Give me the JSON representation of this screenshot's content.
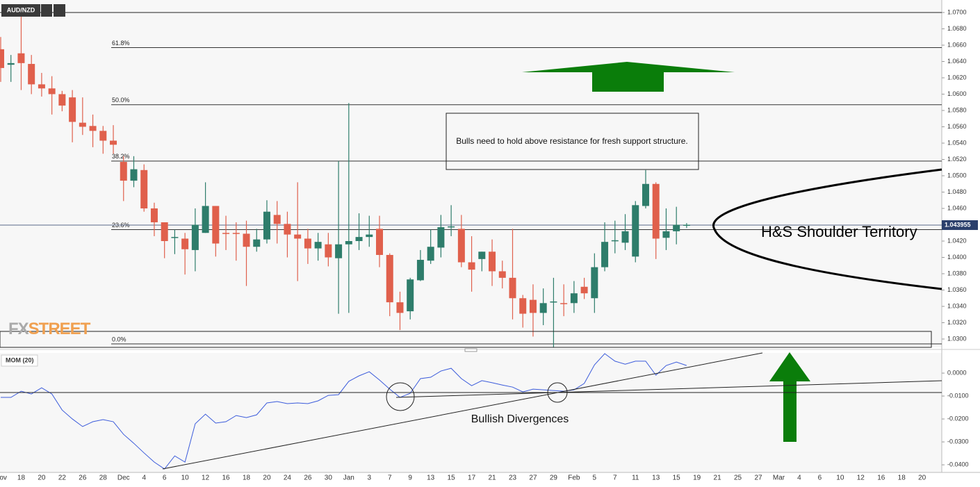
{
  "chart_data": [
    {
      "type": "candlestick",
      "series": [
        {
          "name": "AUD/NZD",
          "up_color": "#2e7d6b",
          "down_color": "#e0604c",
          "open": [
            1.0655,
            1.0636,
            1.065,
            1.0637,
            1.0612,
            1.0607,
            1.06,
            1.0596,
            1.0565,
            1.0561,
            1.0555,
            1.0543,
            1.0517,
            1.0494,
            1.0507,
            1.046,
            1.0443,
            1.0424,
            1.0423,
            1.0409,
            1.043,
            1.0463,
            1.043,
            1.043,
            1.0429,
            1.0413,
            1.0422,
            1.0452,
            1.0441,
            1.0428,
            1.0423,
            1.0411,
            1.0416,
            1.0399,
            1.0416,
            1.042,
            1.0425,
            1.0435,
            1.0403,
            1.0345,
            1.0334,
            1.0372,
            1.0396,
            1.0412,
            1.0437,
            1.0435,
            1.0394,
            1.0398,
            1.0407,
            1.0383,
            1.0375,
            1.035,
            1.0348,
            1.0332,
            1.0345,
            1.0344,
            1.0344,
            1.0364,
            1.035,
            1.0388,
            1.042,
            1.0418,
            1.0401,
            1.0463,
            1.049,
            1.0424,
            1.0432,
            1.0439
          ],
          "high": [
            1.067,
            1.0648,
            1.0707,
            1.0648,
            1.0626,
            1.0622,
            1.0604,
            1.0605,
            1.0596,
            1.0575,
            1.0561,
            1.0562,
            1.0524,
            1.0524,
            1.0514,
            1.0467,
            1.0443,
            1.0434,
            1.043,
            1.046,
            1.0492,
            1.0463,
            1.0451,
            1.0443,
            1.0445,
            1.0435,
            1.047,
            1.0469,
            1.0456,
            1.0492,
            1.0435,
            1.043,
            1.043,
            1.0518,
            1.0589,
            1.0454,
            1.0451,
            1.0451,
            1.0405,
            1.0358,
            1.0375,
            1.0409,
            1.0434,
            1.0452,
            1.0464,
            1.0452,
            1.0426,
            1.0407,
            1.0422,
            1.0396,
            1.0435,
            1.0354,
            1.0367,
            1.0362,
            1.0375,
            1.0367,
            1.0371,
            1.0375,
            1.0405,
            1.0443,
            1.0445,
            1.0453,
            1.0469,
            1.0507,
            1.0492,
            1.046,
            1.0462,
            1.0442
          ],
          "low": [
            1.0615,
            1.0615,
            1.0605,
            1.06,
            1.0597,
            1.0575,
            1.0579,
            1.0541,
            1.055,
            1.0535,
            1.0527,
            1.0527,
            1.0469,
            1.0486,
            1.0456,
            1.0426,
            1.0399,
            1.0404,
            1.0379,
            1.0383,
            1.043,
            1.0401,
            1.0409,
            1.0396,
            1.0365,
            1.0407,
            1.0417,
            1.0417,
            1.04,
            1.0371,
            1.0392,
            1.0396,
            1.0389,
            1.0331,
            1.0332,
            1.0409,
            1.0413,
            1.0388,
            1.0328,
            1.0311,
            1.0324,
            1.0371,
            1.0392,
            1.04,
            1.0426,
            1.0388,
            1.0358,
            1.0383,
            1.0365,
            1.0362,
            1.0324,
            1.0314,
            1.0303,
            1.0317,
            1.029,
            1.0328,
            1.0332,
            1.0349,
            1.0332,
            1.0383,
            1.0405,
            1.0409,
            1.0394,
            1.046,
            1.0398,
            1.0409,
            1.0416,
            1.0436
          ],
          "close": [
            1.0632,
            1.0638,
            1.0638,
            1.0612,
            1.0607,
            1.06,
            1.0586,
            1.0566,
            1.056,
            1.0555,
            1.0543,
            1.0538,
            1.0494,
            1.0508,
            1.046,
            1.0443,
            1.042,
            1.0425,
            1.041,
            1.044,
            1.0463,
            1.0417,
            1.0429,
            1.0429,
            1.0413,
            1.0422,
            1.0456,
            1.0441,
            1.0428,
            1.0423,
            1.0411,
            1.0419,
            1.04,
            1.0416,
            1.042,
            1.0425,
            1.0428,
            1.0403,
            1.0345,
            1.0332,
            1.0373,
            1.0397,
            1.0413,
            1.0437,
            1.0438,
            1.0394,
            1.0385,
            1.0407,
            1.0383,
            1.0375,
            1.035,
            1.0331,
            1.0332,
            1.0344,
            1.0346,
            1.0343,
            1.0356,
            1.0356,
            1.0388,
            1.0419,
            1.0421,
            1.0432,
            1.0464,
            1.049,
            1.0423,
            1.0432,
            1.044,
            1.044
          ]
        }
      ],
      "categories": [
        "Nov",
        null,
        "18",
        null,
        "20",
        null,
        "22",
        null,
        "26",
        null,
        "28",
        null,
        "Dec",
        null,
        "4",
        null,
        "6",
        null,
        "10",
        null,
        "12",
        null,
        "16",
        null,
        "18",
        null,
        "20",
        null,
        "24",
        null,
        "26",
        null,
        "30",
        null,
        "Jan",
        null,
        "3",
        null,
        "7",
        null,
        "9",
        null,
        "13",
        null,
        "15",
        null,
        "17",
        null,
        "21",
        null,
        "23",
        null,
        "27",
        null,
        "29",
        null,
        "Feb",
        null,
        "5",
        null,
        "7",
        null,
        "11",
        null,
        "13",
        null,
        "15",
        null,
        "19",
        null,
        "21",
        null,
        "25",
        null,
        "27",
        null,
        "Mar",
        null,
        "4",
        null,
        "6",
        null,
        "10",
        null,
        "12",
        null,
        "16",
        null,
        "18",
        null,
        "20",
        null
      ],
      "ylim": [
        1.029,
        1.071
      ],
      "yticks": [
        {
          "value": 1.03,
          "label": "1.0300"
        },
        {
          "value": 1.032,
          "label": "1.0320"
        },
        {
          "value": 1.034,
          "label": "1.0340"
        },
        {
          "value": 1.036,
          "label": "1.0360"
        },
        {
          "value": 1.038,
          "label": "1.0380"
        },
        {
          "value": 1.04,
          "label": "1.0400"
        },
        {
          "value": 1.042,
          "label": "1.0420"
        },
        {
          "value": 1.044,
          "label": "1.0440"
        },
        {
          "value": 1.046,
          "label": "1.0460"
        },
        {
          "value": 1.048,
          "label": "1.0480"
        },
        {
          "value": 1.05,
          "label": "1.0500"
        },
        {
          "value": 1.052,
          "label": "1.0520"
        },
        {
          "value": 1.054,
          "label": "1.0540"
        },
        {
          "value": 1.056,
          "label": "1.0560"
        },
        {
          "value": 1.058,
          "label": "1.0580"
        },
        {
          "value": 1.06,
          "label": "1.0600"
        },
        {
          "value": 1.062,
          "label": "1.0620"
        },
        {
          "value": 1.064,
          "label": "1.0640"
        },
        {
          "value": 1.066,
          "label": "1.0660"
        },
        {
          "value": 1.068,
          "label": "1.0680"
        },
        {
          "value": 1.07,
          "label": "1.0700"
        }
      ],
      "levels": [
        {
          "label": "61.8%",
          "value": 1.0657
        },
        {
          "label": "50.0%",
          "value": 1.0587
        },
        {
          "label": "38.2%",
          "value": 1.0518
        },
        {
          "label": "23.6%",
          "value": 1.0434
        },
        {
          "label": "0.0%",
          "value": 1.0294
        }
      ],
      "hlines": [
        1.07
      ],
      "last_price": 1.043955,
      "annotations": [
        "Bulls need to hold above resistance for fresh support structure.",
        "H&S Shoulder Territory"
      ],
      "watermark": [
        "FX",
        "STREET"
      ]
    },
    {
      "type": "line",
      "series": [
        {
          "name": "MOM (20)",
          "color": "#3b5bdb",
          "values": [
            -0.0106,
            -0.0106,
            -0.0079,
            -0.0091,
            -0.0064,
            -0.0091,
            -0.0161,
            -0.02,
            -0.0233,
            -0.0212,
            -0.0203,
            -0.0212,
            -0.0267,
            -0.0306,
            -0.0348,
            -0.0388,
            -0.0418,
            -0.0361,
            -0.0388,
            -0.0221,
            -0.0179,
            -0.0218,
            -0.0212,
            -0.0185,
            -0.0194,
            -0.0182,
            -0.013,
            -0.0124,
            -0.0133,
            -0.013,
            -0.0133,
            -0.0121,
            -0.0097,
            -0.0094,
            -0.0036,
            -0.0012,
            0.0006,
            -0.003,
            -0.007,
            -0.0106,
            -0.0088,
            -0.0024,
            -0.0018,
            0.0009,
            0.0021,
            -0.0024,
            -0.0055,
            -0.0033,
            -0.0042,
            -0.0052,
            -0.0061,
            -0.0082,
            -0.007,
            -0.0073,
            -0.0076,
            -0.0079,
            -0.0073,
            -0.0045,
            0.0036,
            0.0085,
            0.0052,
            0.0039,
            0.0052,
            0.0052,
            -0.0009,
            0.0033,
            0.0048,
            0.0033
          ]
        }
      ],
      "ylim": [
        -0.0433,
        0.0088
      ],
      "yticks": [
        {
          "value": -0.04,
          "label": "-0.0400"
        },
        {
          "value": -0.03,
          "label": "-0.0300"
        },
        {
          "value": -0.02,
          "label": "-0.0200"
        },
        {
          "value": -0.01,
          "label": "-0.0100"
        },
        {
          "value": 0,
          "label": "0.0000"
        }
      ],
      "annotations": [
        "Bullish Divergences"
      ]
    }
  ]
}
